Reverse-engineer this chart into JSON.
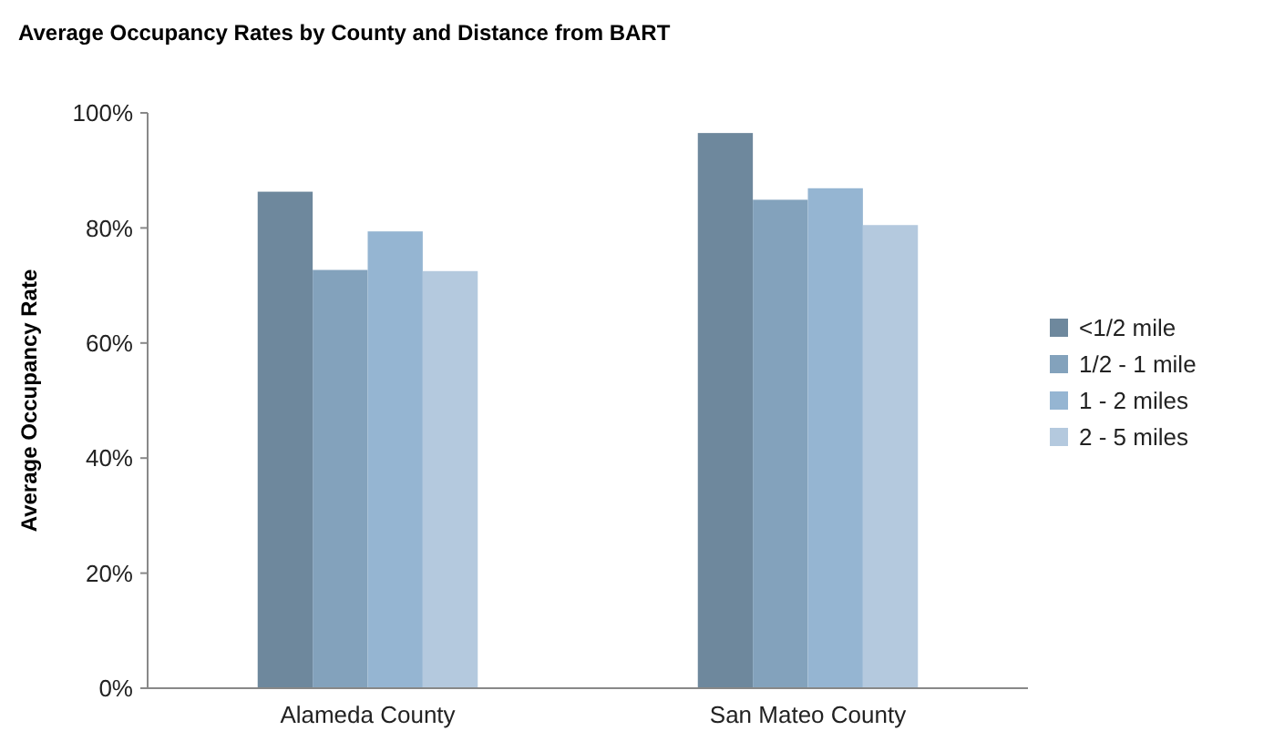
{
  "chart_data": {
    "type": "bar",
    "title": "Average Occupancy Rates by County and Distance from BART",
    "ylabel": "Average Occupancy Rate",
    "categories": [
      "Alameda County",
      "San Mateo County"
    ],
    "series": [
      {
        "name": "<1/2 mile",
        "color": "#6e889d",
        "values": [
          86.3,
          96.5
        ]
      },
      {
        "name": "1/2 - 1 mile",
        "color": "#83a2bc",
        "values": [
          72.7,
          84.9
        ]
      },
      {
        "name": "1 - 2 miles",
        "color": "#95b5d2",
        "values": [
          79.4,
          86.9
        ]
      },
      {
        "name": "2 - 5 miles",
        "color": "#b4c9de",
        "values": [
          72.5,
          80.5
        ]
      }
    ],
    "ylim": [
      0,
      100
    ],
    "yticks": [
      {
        "value": 0,
        "label": "0%"
      },
      {
        "value": 20,
        "label": "20%"
      },
      {
        "value": 40,
        "label": "40%"
      },
      {
        "value": 60,
        "label": "60%"
      },
      {
        "value": 80,
        "label": "80%"
      },
      {
        "value": 100,
        "label": "100%"
      }
    ],
    "grid": false,
    "legend": "right"
  }
}
